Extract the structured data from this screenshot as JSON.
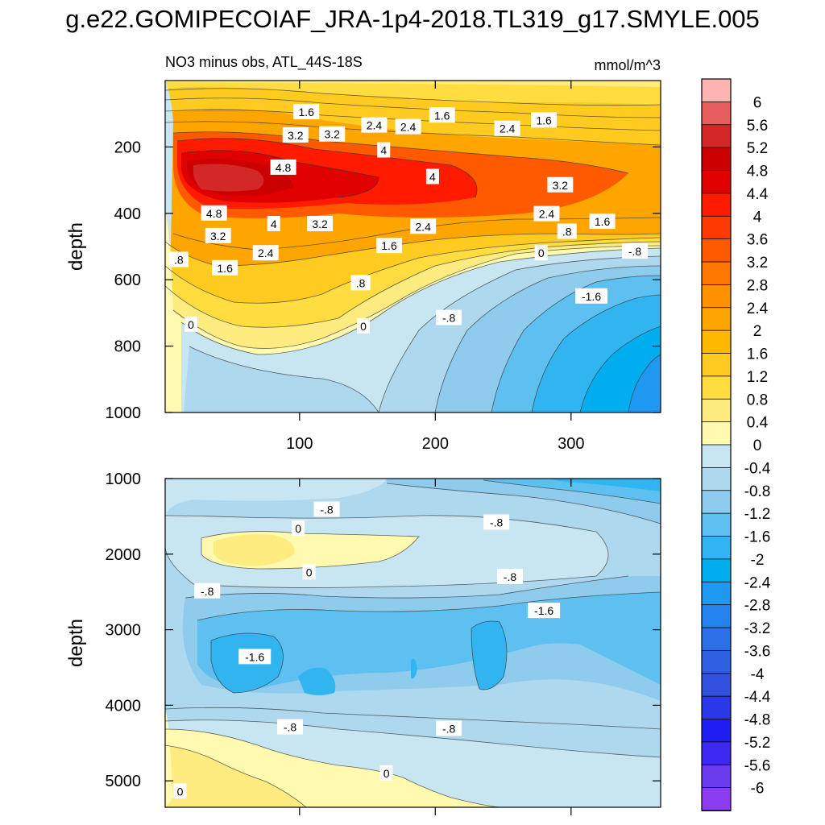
{
  "figure": {
    "title": "g.e22.GOMIPECOIAF_JRA-1p4-2018.TL319_g17.SMYLE.005"
  },
  "chart_data": [
    {
      "type": "contour",
      "panel": "upper",
      "left_title": "NO3 minus obs, ATL_44S-18S",
      "right_title": "mmol/m^3",
      "xlabel": "",
      "ylabel": "depth",
      "xlim": [
        1,
        366
      ],
      "ylim": [
        1000,
        0
      ],
      "x_ticks": [
        100,
        200,
        300
      ],
      "y_ticks": [
        200,
        400,
        600,
        800,
        1000
      ],
      "contour_labels": [
        {
          "text": "1.6",
          "x": 105,
          "y": 95
        },
        {
          "text": "1.6",
          "x": 205,
          "y": 105
        },
        {
          "text": "1.6",
          "x": 280,
          "y": 120
        },
        {
          "text": "2.4",
          "x": 155,
          "y": 135
        },
        {
          "text": "2.4",
          "x": 180,
          "y": 140
        },
        {
          "text": "2.4",
          "x": 253,
          "y": 145
        },
        {
          "text": "3.2",
          "x": 97,
          "y": 165
        },
        {
          "text": "3.2",
          "x": 124,
          "y": 162
        },
        {
          "text": "4",
          "x": 162,
          "y": 210
        },
        {
          "text": "4",
          "x": 198,
          "y": 290
        },
        {
          "text": "4.8",
          "x": 88,
          "y": 262
        },
        {
          "text": "4.8",
          "x": 37,
          "y": 400
        },
        {
          "text": "3.2",
          "x": 292,
          "y": 315
        },
        {
          "text": "2.4",
          "x": 282,
          "y": 402
        },
        {
          "text": "1.6",
          "x": 323,
          "y": 425
        },
        {
          "text": ".8",
          "x": 297,
          "y": 455
        },
        {
          "text": "4",
          "x": 81,
          "y": 432
        },
        {
          "text": "3.2",
          "x": 115,
          "y": 432
        },
        {
          "text": "2.4",
          "x": 191,
          "y": 440
        },
        {
          "text": "3.2",
          "x": 40,
          "y": 468
        },
        {
          "text": "1.6",
          "x": 166,
          "y": 498
        },
        {
          "text": "2.4",
          "x": 75,
          "y": 520
        },
        {
          "text": "0",
          "x": 278,
          "y": 520
        },
        {
          "text": "-.8",
          "x": 347,
          "y": 515
        },
        {
          "text": ".8",
          "x": 11,
          "y": 540
        },
        {
          "text": "1.6",
          "x": 45,
          "y": 565
        },
        {
          "text": ".8",
          "x": 145,
          "y": 610
        },
        {
          "text": "-1.6",
          "x": 315,
          "y": 650
        },
        {
          "text": "-.8",
          "x": 210,
          "y": 715
        },
        {
          "text": "0",
          "x": 20,
          "y": 735
        },
        {
          "text": "0",
          "x": 147,
          "y": 740
        }
      ]
    },
    {
      "type": "contour",
      "panel": "lower",
      "xlabel": "",
      "ylabel": "depth",
      "xlim": [
        1,
        366
      ],
      "ylim": [
        5350,
        1000
      ],
      "y_ticks": [
        1000,
        2000,
        3000,
        4000,
        5000
      ],
      "contour_labels": [
        {
          "text": "-.8",
          "x": 120,
          "y": 1410
        },
        {
          "text": "0",
          "x": 99,
          "y": 1660
        },
        {
          "text": "-.8",
          "x": 245,
          "y": 1580
        },
        {
          "text": "0",
          "x": 107,
          "y": 2240
        },
        {
          "text": "-.8",
          "x": 255,
          "y": 2300
        },
        {
          "text": "-.8",
          "x": 32,
          "y": 2490
        },
        {
          "text": "-1.6",
          "x": 280,
          "y": 2750
        },
        {
          "text": "-1.6",
          "x": 67,
          "y": 3360
        },
        {
          "text": "-.8",
          "x": 93,
          "y": 4290
        },
        {
          "text": "-.8",
          "x": 210,
          "y": 4310
        },
        {
          "text": "0",
          "x": 164,
          "y": 4900
        },
        {
          "text": "0",
          "x": 12,
          "y": 5140
        }
      ]
    }
  ],
  "colorbar": {
    "labels": [
      "6",
      "5.6",
      "5.2",
      "4.8",
      "4.4",
      "4",
      "3.6",
      "3.2",
      "2.8",
      "2.4",
      "2",
      "1.6",
      "1.2",
      "0.8",
      "0.4",
      "0",
      "-0.4",
      "-0.8",
      "-1.2",
      "-1.6",
      "-2",
      "-2.4",
      "-2.8",
      "-3.2",
      "-3.6",
      "-4",
      "-4.4",
      "-4.8",
      "-5.2",
      "-5.6",
      "-6"
    ],
    "colors": [
      "#FFB4B4",
      "#E85E5E",
      "#D42828",
      "#CC0000",
      "#E00000",
      "#FF1A00",
      "#FF3A00",
      "#FF5A00",
      "#FF7800",
      "#FF9200",
      "#FFA500",
      "#FFB800",
      "#FFCB20",
      "#FFDC40",
      "#FFEC80",
      "#FFFAB0",
      "#C8E6F2",
      "#ADD8EE",
      "#8ECBEC",
      "#5EC0F0",
      "#32B4F0",
      "#00AEEF",
      "#1E98F0",
      "#2482EE",
      "#2C70E8",
      "#2E60E0",
      "#3050DD",
      "#2A38E8",
      "#1E1EF2",
      "#3C28F0",
      "#6A3CEE",
      "#8C3CF0"
    ]
  }
}
